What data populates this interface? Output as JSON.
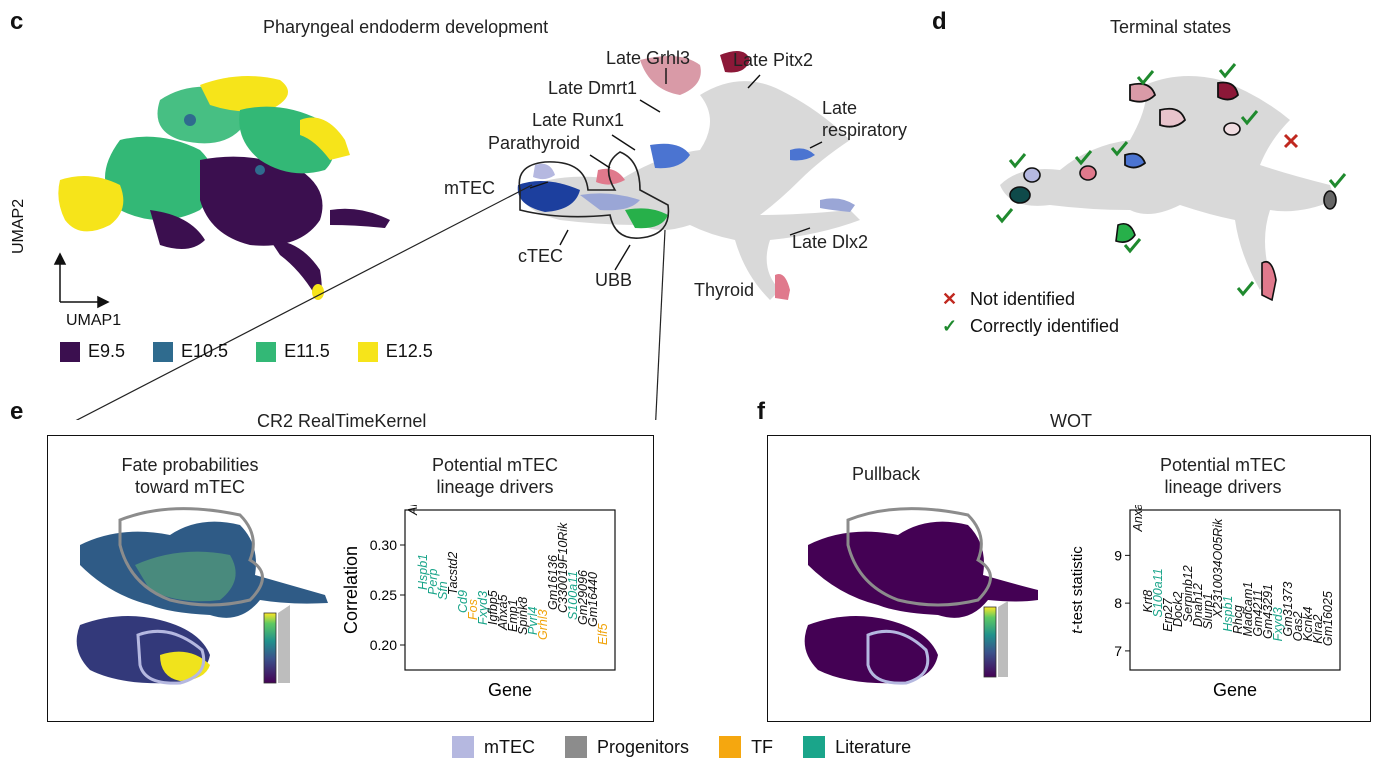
{
  "panel_c": {
    "letter": "c",
    "title": "Pharyngeal endoderm development",
    "axis_y": "UMAP2",
    "axis_x": "UMAP1",
    "legend": [
      {
        "label": "E9.5",
        "color": "#3b0f4f"
      },
      {
        "label": "E10.5",
        "color": "#2f6b8e"
      },
      {
        "label": "E11.5",
        "color": "#33b876"
      },
      {
        "label": "E12.5",
        "color": "#f6e41a"
      }
    ],
    "cell_labels": [
      "Late Grhl3",
      "Late Pitx2",
      "Late Dmrt1",
      "Late Runx1",
      "Late",
      "respiratory",
      "Parathyroid",
      "mTEC",
      "cTEC",
      "UBB",
      "Late Dlx2",
      "Thyroid"
    ]
  },
  "panel_d": {
    "letter": "d",
    "title": "Terminal states",
    "legend": [
      {
        "symbol": "✕",
        "label": "Not identified",
        "color": "#c0281f"
      },
      {
        "symbol": "✓",
        "label": "Correctly identified",
        "color": "#1f8a2e"
      }
    ]
  },
  "panel_e": {
    "letter": "e",
    "title": "CR2 RealTimeKernel",
    "left_title_1": "Fate probabilities",
    "left_title_2": "toward mTEC",
    "right_title_1": "Potential mTEC",
    "right_title_2": "lineage drivers",
    "ylabel": "Correlation",
    "xlabel": "Gene",
    "yticks": [
      "0.30",
      "0.25",
      "0.20"
    ],
    "genes": [
      {
        "name": "Anxa2",
        "value": 0.33,
        "color": "#111111"
      },
      {
        "name": "Hspb1",
        "value": 0.255,
        "color": "#1aa58a"
      },
      {
        "name": "Perp",
        "value": 0.25,
        "color": "#1aa58a"
      },
      {
        "name": "Sfn",
        "value": 0.245,
        "color": "#1aa58a"
      },
      {
        "name": "Tacstd2",
        "value": 0.25,
        "color": "#111111"
      },
      {
        "name": "Cd9",
        "value": 0.232,
        "color": "#1aa58a"
      },
      {
        "name": "Fos",
        "value": 0.225,
        "color": "#f0a30a"
      },
      {
        "name": "Fxyd3",
        "value": 0.22,
        "color": "#1aa58a"
      },
      {
        "name": "Igfbp5",
        "value": 0.22,
        "color": "#111111"
      },
      {
        "name": "Anxa5",
        "value": 0.215,
        "color": "#111111"
      },
      {
        "name": "Emp1",
        "value": 0.213,
        "color": "#111111"
      },
      {
        "name": "Spink8",
        "value": 0.21,
        "color": "#111111"
      },
      {
        "name": "Pvrl4",
        "value": 0.21,
        "color": "#1aa58a"
      },
      {
        "name": "Grhl3",
        "value": 0.205,
        "color": "#f0a30a"
      },
      {
        "name": "Gm16136",
        "value": 0.235,
        "color": "#111111"
      },
      {
        "name": "C330019F10Rik",
        "value": 0.232,
        "color": "#111111"
      },
      {
        "name": "S100a11",
        "value": 0.225,
        "color": "#1aa58a"
      },
      {
        "name": "Gm29096",
        "value": 0.22,
        "color": "#111111"
      },
      {
        "name": "Gm16440",
        "value": 0.218,
        "color": "#111111"
      },
      {
        "name": "Elf5",
        "value": 0.2,
        "color": "#f0a30a"
      }
    ]
  },
  "panel_f": {
    "letter": "f",
    "title": "WOT",
    "left_title": "Pullback",
    "right_title_1": "Potential mTEC",
    "right_title_2": "lineage drivers",
    "ylabel_italic": "t",
    "ylabel_rest": "-test statistic",
    "xlabel": "Gene",
    "yticks": [
      "9",
      "8",
      "7"
    ],
    "genes": [
      {
        "name": "Anxa2",
        "value": 9.5,
        "color": "#111111"
      },
      {
        "name": "Krt8",
        "value": 7.8,
        "color": "#111111"
      },
      {
        "name": "S100a11",
        "value": 7.7,
        "color": "#1aa58a"
      },
      {
        "name": "Erp27",
        "value": 7.4,
        "color": "#111111"
      },
      {
        "name": "Dock2",
        "value": 7.5,
        "color": "#111111"
      },
      {
        "name": "Serpinb12",
        "value": 7.6,
        "color": "#111111"
      },
      {
        "name": "Dnah12",
        "value": 7.5,
        "color": "#111111"
      },
      {
        "name": "Slurp1",
        "value": 7.45,
        "color": "#111111"
      },
      {
        "name": "X2310034O05Rik",
        "value": 7.7,
        "color": "#111111"
      },
      {
        "name": "Hspb1",
        "value": 7.4,
        "color": "#1aa58a"
      },
      {
        "name": "Rhcg",
        "value": 7.35,
        "color": "#111111"
      },
      {
        "name": "Madcam1",
        "value": 7.3,
        "color": "#111111"
      },
      {
        "name": "Gm4211",
        "value": 7.3,
        "color": "#111111"
      },
      {
        "name": "Gm43291",
        "value": 7.25,
        "color": "#111111"
      },
      {
        "name": "Fxyd3",
        "value": 7.2,
        "color": "#1aa58a"
      },
      {
        "name": "Gm31373",
        "value": 7.3,
        "color": "#111111"
      },
      {
        "name": "Oas2",
        "value": 7.2,
        "color": "#111111"
      },
      {
        "name": "Kcnk4",
        "value": 7.2,
        "color": "#111111"
      },
      {
        "name": "Klra2",
        "value": 7.15,
        "color": "#111111"
      },
      {
        "name": "Gm16025",
        "value": 7.1,
        "color": "#111111"
      }
    ]
  },
  "bottom_legend": [
    {
      "label": "mTEC",
      "color": "#b5b8e0"
    },
    {
      "label": "Progenitors",
      "color": "#8c8c8c"
    },
    {
      "label": "TF",
      "color": "#f5a70f"
    },
    {
      "label": "Literature",
      "color": "#1aa58a"
    }
  ]
}
